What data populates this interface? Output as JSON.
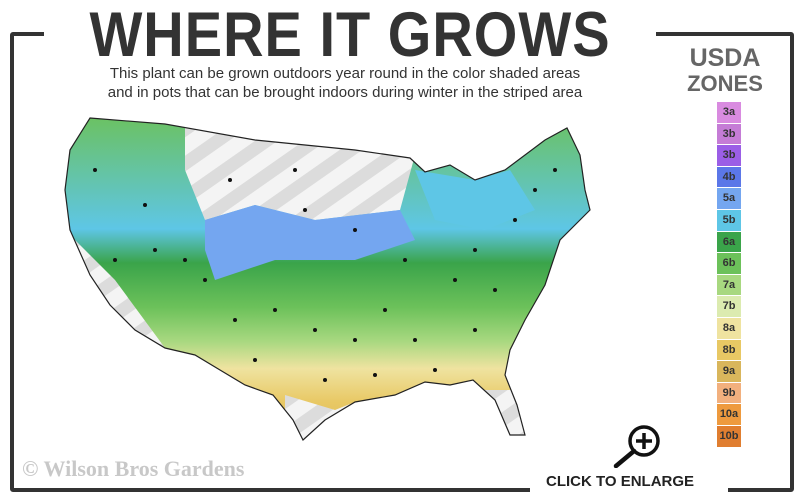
{
  "header": {
    "title": "WHERE IT GROWS",
    "subtitle_line1": "This plant can be grown outdoors year round in the color shaded areas",
    "subtitle_line2": "and in pots that can be brought indoors during winter in the striped area"
  },
  "legend": {
    "title_line1": "USDA",
    "title_line2": "ZONES",
    "zones": [
      {
        "label": "3a",
        "color": "#d98be0"
      },
      {
        "label": "3b",
        "color": "#c57cd6"
      },
      {
        "label": "3b",
        "color": "#9b5ee6"
      },
      {
        "label": "4b",
        "color": "#5b77e8"
      },
      {
        "label": "5a",
        "color": "#74a6f0"
      },
      {
        "label": "5b",
        "color": "#5ec6e6"
      },
      {
        "label": "6a",
        "color": "#3aa44a"
      },
      {
        "label": "6b",
        "color": "#6cc15a"
      },
      {
        "label": "7a",
        "color": "#a8d880"
      },
      {
        "label": "7b",
        "color": "#dcebb0"
      },
      {
        "label": "8a",
        "color": "#efe3a0"
      },
      {
        "label": "8b",
        "color": "#e8c864"
      },
      {
        "label": "9a",
        "color": "#d9b65c"
      },
      {
        "label": "9b",
        "color": "#f2b07e"
      },
      {
        "label": "10a",
        "color": "#ee9a3e"
      },
      {
        "label": "10b",
        "color": "#e07e30"
      }
    ]
  },
  "watermark": "© Wilson Bros Gardens",
  "enlarge": {
    "label": "CLICK TO ENLARGE",
    "icon": "zoom-in-icon"
  }
}
